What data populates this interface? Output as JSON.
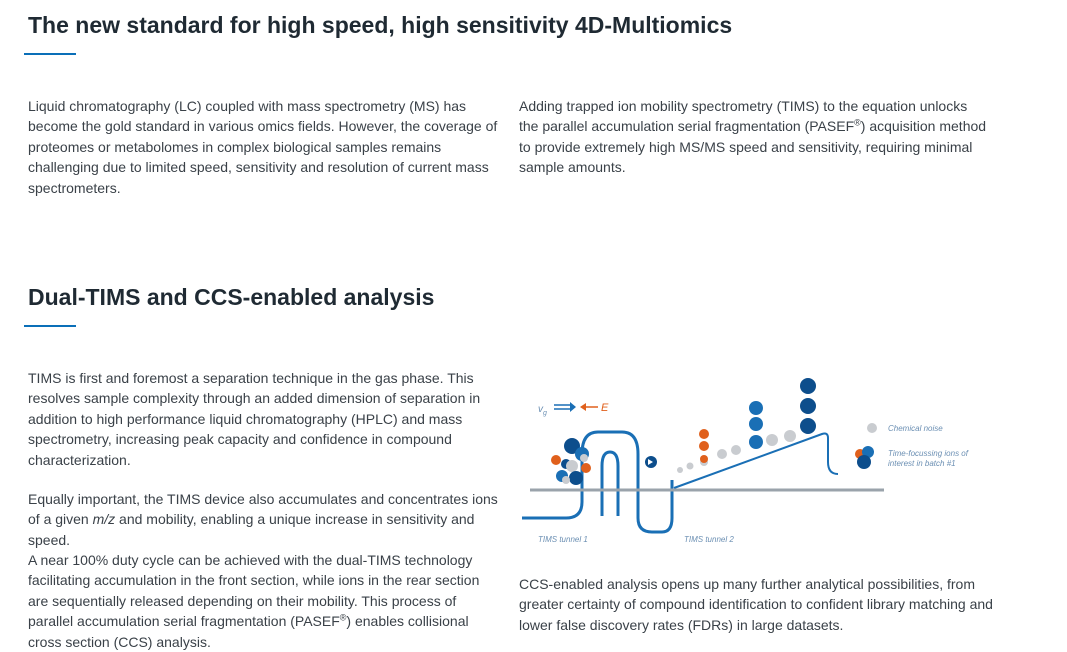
{
  "section1": {
    "heading": "The new standard for high speed, high sensitivity 4D-Multiomics",
    "left_text": "Liquid chromatography (LC) coupled with mass spectrometry (MS) has become the gold standard in various omics fields. However, the coverage of proteomes or metabolomes in complex biological samples remains challenging due to limited speed, sensitivity and resolution of current mass spectrometers.",
    "right_text_a": "Adding trapped ion mobility spectrometry (TIMS) to the equation unlocks the parallel accumulation serial fragmentation (PASEF",
    "right_text_sup": "®",
    "right_text_b": ") acquisition method to provide extremely high MS/MS speed and sensitivity, requiring minimal sample amounts."
  },
  "section2": {
    "heading": "Dual-TIMS and CCS-enabled analysis",
    "p1": "TIMS is first and foremost a separation technique in the gas phase. This resolves sample complexity through an added dimension of separation in addition to high performance liquid chromatography (HPLC) and mass spectrometry, increasing peak capacity and confidence in compound characterization.",
    "p2_a": "Equally important, the TIMS device also accumulates and concentrates ions of a given ",
    "p2_em": "m/z",
    "p2_b": " and mobility, enabling a unique increase in sensitivity and speed.",
    "p3_a": "A near 100% duty cycle can be achieved with the dual-TIMS technology facilitating accumulation in the front section, while ions in the rear section are sequentially released depending on their mobility. This process of parallel accumulation serial fragmentation (PASEF",
    "p3_sup": "®",
    "p3_b": ") enables collisional cross section (CCS) analysis.",
    "caption": "CCS-enabled analysis opens up many further analytical possibilities, from greater certainty of compound identification to confident library matching and lower false discovery rates (FDRs) in large datasets."
  },
  "figure": {
    "vg_label": "v",
    "vg_sub": "g",
    "e_label": "E",
    "legend_noise": "Chemical noise",
    "legend_ions_line1": "Time-focussing ions of",
    "legend_ions_line2": "interest in batch #1",
    "tunnel1_label": "TIMS tunnel 1",
    "tunnel2_label": "TIMS tunnel 2",
    "colors": {
      "dark_blue": "#0d4e8c",
      "mid_blue": "#1a6fb5",
      "orange": "#e0601c",
      "grey": "#c9ccd0",
      "axis": "#9aa3ab"
    }
  }
}
